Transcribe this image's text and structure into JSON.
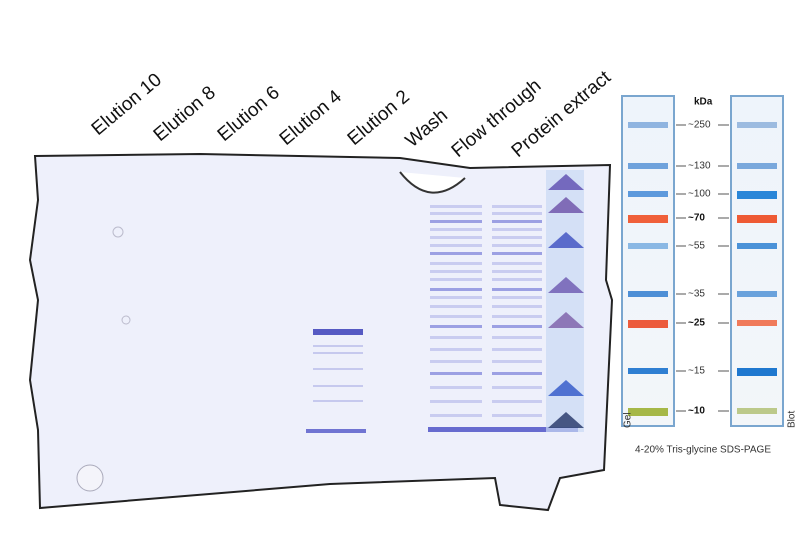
{
  "lane_labels": [
    "Elution 10",
    "Elution 8",
    "Elution 6",
    "Elution 4",
    "Elution 2",
    "Wash",
    "Flow through",
    "Protein extract"
  ],
  "ladder": {
    "unit": "kDa",
    "markers": [
      "~250",
      "~130",
      "~100",
      "~70",
      "~55",
      "~35",
      "~25",
      "~15",
      "~10"
    ],
    "gel_label": "Gel",
    "blot_label": "Blot",
    "caption": "4-20% Tris-glycine SDS-PAGE"
  }
}
